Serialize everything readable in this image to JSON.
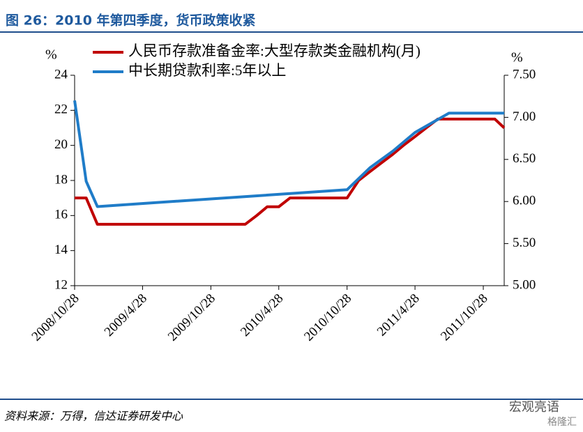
{
  "header": {
    "title": "图 26：2010 年第四季度，货币政策收紧"
  },
  "footer": {
    "source": "资料来源：万得，信达证券研发中心",
    "watermark": "宏观亮语",
    "watermark2": "格隆汇"
  },
  "chart_data": {
    "type": "line",
    "ylabel": "%",
    "y2label": "%",
    "xlim": [
      "2008/10/28",
      "2011/12/23"
    ],
    "xticks": [
      "2008/10/28",
      "2009/4/28",
      "2009/10/28",
      "2010/4/28",
      "2010/10/28",
      "2011/4/28",
      "2011/10/28"
    ],
    "ylim": [
      12,
      24
    ],
    "yticks": [
      12,
      14,
      16,
      18,
      20,
      22,
      24
    ],
    "y2lim": [
      5,
      7.5
    ],
    "y2ticks": [
      {
        "value": 5,
        "label": "5.00"
      },
      {
        "value": 5.5,
        "label": "5.50"
      },
      {
        "value": 6,
        "label": "6.00"
      },
      {
        "value": 6.5,
        "label": "6.50"
      },
      {
        "value": 7,
        "label": "7.00"
      },
      {
        "value": 7.5,
        "label": "7.50"
      }
    ],
    "series": [
      {
        "name": "人民币存款准备金率:大型存款类金融机构(月)",
        "color": "#c00000",
        "axis": "y",
        "x": [
          "2008/10/28",
          "2008/11/28",
          "2008/12/28",
          "2009/1/28",
          "2009/2/28",
          "2009/3/28",
          "2009/4/28",
          "2009/5/28",
          "2009/6/28",
          "2009/7/28",
          "2009/8/28",
          "2009/9/28",
          "2009/10/28",
          "2009/11/28",
          "2009/12/28",
          "2010/1/28",
          "2010/2/28",
          "2010/3/28",
          "2010/4/28",
          "2010/5/28",
          "2010/6/28",
          "2010/7/28",
          "2010/8/28",
          "2010/9/28",
          "2010/10/28",
          "2010/11/28",
          "2010/12/28",
          "2011/1/28",
          "2011/2/28",
          "2011/3/28",
          "2011/4/28",
          "2011/5/28",
          "2011/6/28",
          "2011/7/28",
          "2011/8/28",
          "2011/9/28",
          "2011/10/28",
          "2011/11/28",
          "2011/12/23"
        ],
        "values": [
          17,
          17,
          15.5,
          15.5,
          15.5,
          15.5,
          15.5,
          15.5,
          15.5,
          15.5,
          15.5,
          15.5,
          15.5,
          15.5,
          15.5,
          15.5,
          16,
          16.5,
          16.5,
          17,
          17,
          17,
          17,
          17,
          17,
          18,
          18.5,
          19,
          19.5,
          20,
          20.5,
          21,
          21.5,
          21.5,
          21.5,
          21.5,
          21.5,
          21.5,
          21
        ]
      },
      {
        "name": "中长期贷款利率:5年以上",
        "color": "#1f7cc8",
        "axis": "y2",
        "x": [
          "2008/10/28",
          "2008/11/28",
          "2008/12/28",
          "2010/10/28",
          "2010/12/28",
          "2011/2/28",
          "2011/4/28",
          "2011/7/28",
          "2011/12/23"
        ],
        "values": [
          7.2,
          6.24,
          5.94,
          6.14,
          6.4,
          6.6,
          6.82,
          7.05,
          7.05
        ]
      }
    ]
  }
}
